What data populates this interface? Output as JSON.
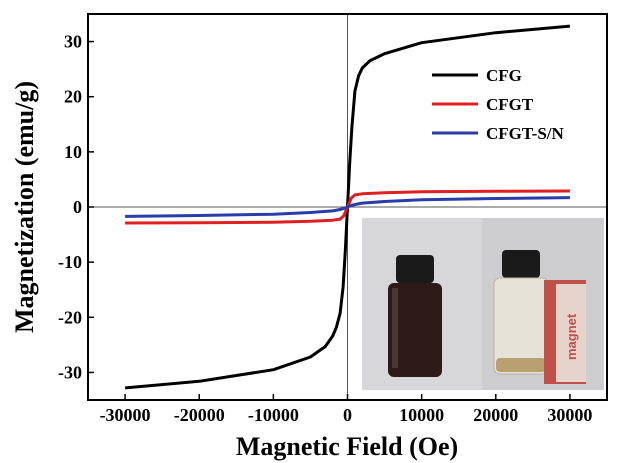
{
  "chart_data": {
    "type": "line",
    "xlabel": "Magnetic Field (Oe)",
    "ylabel": "Magnetization (emu/g)",
    "xlim": [
      -35000,
      35000
    ],
    "ylim": [
      -35,
      35
    ],
    "xticks": [
      -30000,
      -20000,
      -10000,
      0,
      10000,
      20000,
      30000
    ],
    "yticks": [
      -30,
      -20,
      -10,
      0,
      10,
      20,
      30
    ],
    "grid": false,
    "legend_position": "top-right",
    "zero_lines": true,
    "series": [
      {
        "name": "CFG",
        "color": "#000000",
        "x": [
          -30000,
          -20000,
          -10000,
          -5000,
          -3000,
          -2000,
          -1500,
          -1000,
          -600,
          -300,
          -100,
          0,
          100,
          300,
          600,
          1000,
          1500,
          2000,
          3000,
          5000,
          10000,
          20000,
          30000
        ],
        "y": [
          -32.8,
          -31.6,
          -29.5,
          -27.2,
          -25.3,
          -23.4,
          -21.8,
          -19.3,
          -14.5,
          -8.0,
          -2.5,
          0,
          2.5,
          8.0,
          14.5,
          21.0,
          23.8,
          25.2,
          26.5,
          27.8,
          29.8,
          31.6,
          32.8
        ]
      },
      {
        "name": "CFGT",
        "color": "#e02020",
        "x": [
          -30000,
          -20000,
          -10000,
          -5000,
          -2000,
          -1000,
          -500,
          -200,
          0,
          200,
          500,
          1000,
          2000,
          5000,
          10000,
          20000,
          30000
        ],
        "y": [
          -2.9,
          -2.85,
          -2.75,
          -2.6,
          -2.4,
          -2.2,
          -1.6,
          -0.6,
          0,
          0.6,
          1.6,
          2.2,
          2.4,
          2.6,
          2.75,
          2.85,
          2.9
        ]
      },
      {
        "name": "CFGT-S/N",
        "color": "#2a3ca8",
        "x": [
          -30000,
          -20000,
          -10000,
          -5000,
          -2000,
          -1000,
          -500,
          0,
          500,
          1000,
          2000,
          5000,
          10000,
          20000,
          30000
        ],
        "y": [
          -1.7,
          -1.55,
          -1.3,
          -1.0,
          -0.7,
          -0.45,
          -0.25,
          0,
          0.25,
          0.45,
          0.7,
          1.0,
          1.3,
          1.55,
          1.7
        ]
      }
    ],
    "inset": {
      "type": "photo",
      "label_text": "magnet"
    }
  }
}
